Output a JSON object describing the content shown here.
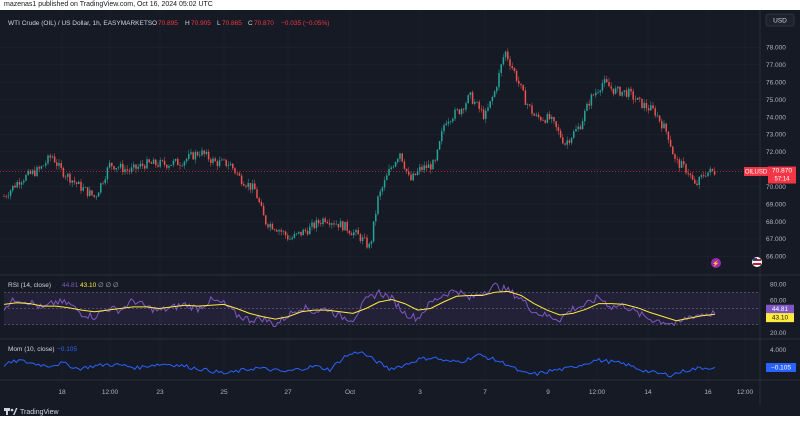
{
  "header": {
    "publisher": "mazenas1 published on TradingView.com, Oct 16, 2024 05:02 UTC"
  },
  "currency_button": "USD",
  "legend": {
    "title": "WTI Crude (OIL) / US Dollar, 1h, EASYMARKETS",
    "o_label": "O",
    "o": "70.895",
    "h_label": "H",
    "h": "70.905",
    "l_label": "L",
    "l": "70.865",
    "c_label": "C",
    "c": "70.870",
    "change": "−0.035 (−0.05%)"
  },
  "rsi_legend": {
    "name": "RSI (14, close)",
    "v1": "44.81",
    "v2": "43.10",
    "extra": "∅ ∅ ∅"
  },
  "mom_legend": {
    "name": "Mom (10, close)",
    "v1": "−0.105"
  },
  "price_badge": {
    "symbol": "OILUSD",
    "price": "70.870",
    "countdown": "57:14"
  },
  "rsi_badges": {
    "rsi": "44.81",
    "ma": "43.10"
  },
  "mom_badge": "−0.105",
  "branding": "TradingView",
  "colors": {
    "bg": "#161a25",
    "up": "#26a69a",
    "down": "#ef5350",
    "rsi": "#7e57c2",
    "rsi_ma": "#ffeb3b",
    "mom": "#2962ff",
    "last": "#f23645"
  },
  "chart_data": [
    {
      "type": "candlestick",
      "title": "WTI Crude (OIL) / US Dollar, 1h, EASYMARKETS",
      "x_ticks": [
        "18",
        "12:00",
        "23",
        "25",
        "27",
        "Oct",
        "3",
        "7",
        "9",
        "12:00",
        "14",
        "16",
        "12:00"
      ],
      "y_ticks": [
        "66.000",
        "67.000",
        "68.000",
        "69.000",
        "70.000",
        "71.000",
        "72.000",
        "73.000",
        "74.000",
        "75.000",
        "76.000",
        "77.000",
        "78.000"
      ],
      "ylim": [
        65.5,
        79.0
      ],
      "approx_close_path": [
        [
          0,
          69.2
        ],
        [
          20,
          70.4
        ],
        [
          40,
          71.0
        ],
        [
          52,
          71.8
        ],
        [
          60,
          71.0
        ],
        [
          80,
          70.0
        ],
        [
          95,
          69.4
        ],
        [
          110,
          71.3
        ],
        [
          130,
          70.9
        ],
        [
          145,
          71.3
        ],
        [
          165,
          71.3
        ],
        [
          180,
          71.4
        ],
        [
          200,
          72.0
        ],
        [
          215,
          71.4
        ],
        [
          230,
          71.3
        ],
        [
          240,
          70.5
        ],
        [
          255,
          69.8
        ],
        [
          265,
          68.0
        ],
        [
          278,
          67.6
        ],
        [
          290,
          67.0
        ],
        [
          310,
          67.6
        ],
        [
          325,
          68.2
        ],
        [
          345,
          67.7
        ],
        [
          360,
          67.1
        ],
        [
          370,
          66.5
        ],
        [
          378,
          69.3
        ],
        [
          390,
          71.0
        ],
        [
          400,
          72.0
        ],
        [
          410,
          70.3
        ],
        [
          420,
          71.0
        ],
        [
          435,
          71.3
        ],
        [
          445,
          73.8
        ],
        [
          460,
          74.4
        ],
        [
          470,
          75.2
        ],
        [
          485,
          74.0
        ],
        [
          495,
          75.5
        ],
        [
          505,
          77.8
        ],
        [
          515,
          76.5
        ],
        [
          525,
          75.0
        ],
        [
          535,
          74.0
        ],
        [
          550,
          73.9
        ],
        [
          565,
          72.5
        ],
        [
          580,
          73.5
        ],
        [
          590,
          75.0
        ],
        [
          603,
          76.0
        ],
        [
          615,
          75.5
        ],
        [
          628,
          75.4
        ],
        [
          640,
          74.8
        ],
        [
          655,
          74.3
        ],
        [
          668,
          73.0
        ],
        [
          675,
          71.5
        ],
        [
          688,
          70.9
        ],
        [
          695,
          70.0
        ],
        [
          705,
          70.8
        ],
        [
          713,
          70.87
        ]
      ],
      "last_price": 70.87
    },
    {
      "type": "line",
      "title": "RSI (14, close)",
      "y_ticks": [
        "20.00",
        "40.00",
        "60.00",
        "80.00"
      ],
      "ylim": [
        15,
        85
      ],
      "levels": [
        30,
        50,
        70
      ],
      "series": [
        {
          "name": "RSI",
          "values": [
            52,
            62,
            58,
            50,
            58,
            56,
            44,
            40,
            50,
            48,
            60,
            52,
            47,
            51,
            55,
            50,
            60,
            56,
            42,
            36,
            38,
            30,
            42,
            52,
            46,
            50,
            40,
            37,
            60,
            70,
            62,
            44,
            38,
            57,
            67,
            73,
            62,
            70,
            78,
            72,
            62,
            46,
            41,
            37,
            50,
            54,
            64,
            52,
            54,
            44,
            37,
            34,
            30,
            40,
            43,
            44
          ]
        },
        {
          "name": "MA",
          "values": [
            55,
            57,
            56,
            53,
            53,
            51,
            48,
            46,
            48,
            50,
            52,
            52,
            50,
            52,
            54,
            53,
            54,
            55,
            50,
            44,
            40,
            37,
            40,
            46,
            48,
            48,
            46,
            44,
            50,
            58,
            61,
            56,
            48,
            50,
            58,
            65,
            66,
            66,
            70,
            71,
            66,
            56,
            48,
            42,
            44,
            49,
            56,
            56,
            55,
            51,
            45,
            40,
            35,
            38,
            41,
            43
          ]
        }
      ]
    },
    {
      "type": "line",
      "title": "Mom (10, close)",
      "y_ticks": [
        "4.000"
      ],
      "ylim": [
        -2.5,
        5.5
      ],
      "series": [
        {
          "name": "Mom",
          "values": [
            0.5,
            1.5,
            0.8,
            0.3,
            0.9,
            -0.4,
            0.2,
            0.6,
            0.4,
            -0.2,
            0.5,
            0.7,
            0.3,
            -0.3,
            -0.9,
            -1.5,
            -0.8,
            -0.2,
            -0.6,
            -1.1,
            -0.4,
            0.2,
            -0.6,
            2.4,
            3.6,
            1.6,
            -0.4,
            0.4,
            1.8,
            2.2,
            1.2,
            1.4,
            2.8,
            1.8,
            0.6,
            -1.4,
            -1.6,
            -0.8,
            -0.4,
            0.6,
            1.6,
            1.2,
            0.6,
            -0.6,
            -1.4,
            -1.8,
            -0.8,
            -0.2,
            -0.105
          ]
        }
      ]
    }
  ]
}
